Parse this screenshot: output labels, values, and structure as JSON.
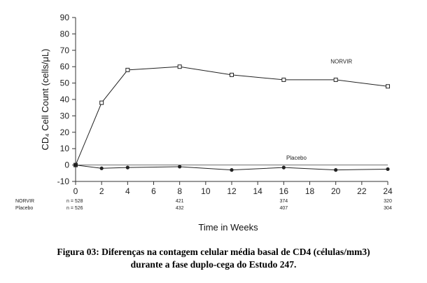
{
  "chart_data": {
    "type": "line",
    "ylabel": "CD₄ Cell Count (cells/μL)",
    "xlabel": "Time in Weeks",
    "ylim": [
      -10,
      90
    ],
    "xlim": [
      0,
      24
    ],
    "x_ticks": [
      0,
      2,
      4,
      6,
      8,
      10,
      12,
      14,
      16,
      18,
      20,
      22,
      24
    ],
    "y_ticks": [
      -10,
      0,
      10,
      20,
      30,
      40,
      50,
      60,
      70,
      80,
      90
    ],
    "reference_line_y": 0,
    "series": [
      {
        "name": "NORVIR",
        "marker": "open-square",
        "x": [
          0,
          2,
          4,
          8,
          12,
          16,
          20,
          24
        ],
        "y": [
          0,
          38,
          58,
          60,
          55,
          52,
          52,
          48
        ]
      },
      {
        "name": "Placebo",
        "marker": "filled-circle",
        "x": [
          0,
          2,
          4,
          8,
          12,
          16,
          20,
          24
        ],
        "y": [
          0,
          -2,
          -1.5,
          -1,
          -3,
          -1.5,
          -3,
          -2.5
        ]
      }
    ],
    "n_table": {
      "rows": [
        {
          "label": "NORVIR",
          "values": [
            "n = 528",
            "421",
            "374",
            "320"
          ]
        },
        {
          "label": "Placebo",
          "values": [
            "n = 526",
            "432",
            "407",
            "304"
          ]
        }
      ],
      "weeks": [
        0,
        8,
        16,
        24
      ]
    }
  },
  "caption": {
    "line1": "Figura 03: Diferenças na contagem celular média basal de CD4 (células/mm3)",
    "line2": "durante a fase duplo-cega do Estudo 247."
  }
}
